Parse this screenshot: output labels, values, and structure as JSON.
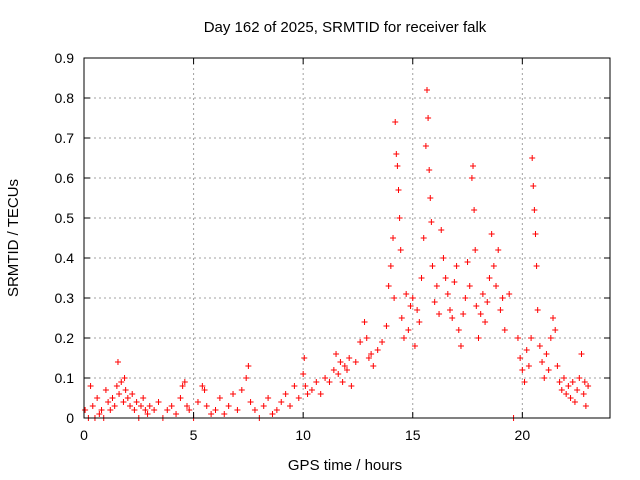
{
  "chart_data": {
    "type": "scatter",
    "title": "Day 162 of 2025, SRMTID for receiver falk",
    "xlabel": "GPS time / hours",
    "ylabel": "SRMTID / TECUs",
    "xlim": [
      0,
      24
    ],
    "ylim": [
      0,
      0.9
    ],
    "x_ticks": [
      0,
      5,
      10,
      15,
      20
    ],
    "y_ticks": [
      0,
      0.1,
      0.2,
      0.3,
      0.4,
      0.5,
      0.6,
      0.7,
      0.8,
      0.9
    ],
    "x_tick_labels": [
      "0",
      "5",
      "10",
      "15",
      "20"
    ],
    "y_tick_labels": [
      "0",
      "0.1",
      "0.2",
      "0.3",
      "0.4",
      "0.5",
      "0.6",
      "0.7",
      "0.8",
      "0.9"
    ],
    "grid": true,
    "marker": "+",
    "color": "#ff0000",
    "series": [
      {
        "name": "SRMTID",
        "points": [
          [
            0.05,
            0.02
          ],
          [
            0.2,
            0.0
          ],
          [
            0.3,
            0.08
          ],
          [
            0.4,
            0.03
          ],
          [
            0.5,
            0.0
          ],
          [
            0.6,
            0.05
          ],
          [
            0.7,
            0.01
          ],
          [
            0.8,
            0.02
          ],
          [
            0.9,
            0.0
          ],
          [
            1.0,
            0.07
          ],
          [
            1.1,
            0.04
          ],
          [
            1.2,
            0.02
          ],
          [
            1.3,
            0.05
          ],
          [
            1.4,
            0.03
          ],
          [
            1.5,
            0.08
          ],
          [
            1.55,
            0.14
          ],
          [
            1.6,
            0.06
          ],
          [
            1.7,
            0.09
          ],
          [
            1.8,
            0.04
          ],
          [
            1.85,
            0.1
          ],
          [
            1.9,
            0.07
          ],
          [
            2.0,
            0.05
          ],
          [
            2.1,
            0.03
          ],
          [
            2.2,
            0.06
          ],
          [
            2.3,
            0.02
          ],
          [
            2.4,
            0.04
          ],
          [
            2.5,
            0.0
          ],
          [
            2.6,
            0.03
          ],
          [
            2.7,
            0.05
          ],
          [
            2.8,
            0.02
          ],
          [
            2.9,
            0.01
          ],
          [
            3.0,
            0.03
          ],
          [
            3.2,
            0.02
          ],
          [
            3.4,
            0.04
          ],
          [
            3.6,
            0.0
          ],
          [
            3.8,
            0.02
          ],
          [
            4.0,
            0.03
          ],
          [
            4.2,
            0.01
          ],
          [
            4.4,
            0.05
          ],
          [
            4.5,
            0.08
          ],
          [
            4.6,
            0.09
          ],
          [
            4.7,
            0.03
          ],
          [
            4.8,
            0.02
          ],
          [
            5.0,
            0.0
          ],
          [
            5.2,
            0.04
          ],
          [
            5.4,
            0.08
          ],
          [
            5.5,
            0.07
          ],
          [
            5.6,
            0.03
          ],
          [
            5.8,
            0.01
          ],
          [
            6.0,
            0.02
          ],
          [
            6.2,
            0.05
          ],
          [
            6.4,
            0.01
          ],
          [
            6.6,
            0.03
          ],
          [
            6.8,
            0.06
          ],
          [
            7.0,
            0.02
          ],
          [
            7.2,
            0.07
          ],
          [
            7.4,
            0.1
          ],
          [
            7.5,
            0.13
          ],
          [
            7.6,
            0.04
          ],
          [
            7.8,
            0.02
          ],
          [
            8.0,
            0.0
          ],
          [
            8.2,
            0.03
          ],
          [
            8.4,
            0.05
          ],
          [
            8.6,
            0.01
          ],
          [
            8.8,
            0.02
          ],
          [
            9.0,
            0.04
          ],
          [
            9.2,
            0.06
          ],
          [
            9.4,
            0.03
          ],
          [
            9.6,
            0.08
          ],
          [
            9.8,
            0.05
          ],
          [
            10.0,
            0.11
          ],
          [
            10.05,
            0.15
          ],
          [
            10.1,
            0.08
          ],
          [
            10.2,
            0.06
          ],
          [
            10.4,
            0.07
          ],
          [
            10.6,
            0.09
          ],
          [
            10.8,
            0.06
          ],
          [
            11.0,
            0.1
          ],
          [
            11.2,
            0.09
          ],
          [
            11.4,
            0.12
          ],
          [
            11.5,
            0.16
          ],
          [
            11.6,
            0.11
          ],
          [
            11.7,
            0.14
          ],
          [
            11.8,
            0.09
          ],
          [
            11.9,
            0.13
          ],
          [
            12.0,
            0.12
          ],
          [
            12.1,
            0.15
          ],
          [
            12.2,
            0.08
          ],
          [
            12.4,
            0.14
          ],
          [
            12.6,
            0.19
          ],
          [
            12.8,
            0.24
          ],
          [
            12.9,
            0.2
          ],
          [
            13.0,
            0.15
          ],
          [
            13.1,
            0.16
          ],
          [
            13.2,
            0.13
          ],
          [
            13.4,
            0.17
          ],
          [
            13.6,
            0.19
          ],
          [
            13.8,
            0.23
          ],
          [
            13.9,
            0.33
          ],
          [
            14.0,
            0.38
          ],
          [
            14.1,
            0.45
          ],
          [
            14.15,
            0.3
          ],
          [
            14.2,
            0.74
          ],
          [
            14.25,
            0.66
          ],
          [
            14.3,
            0.63
          ],
          [
            14.35,
            0.57
          ],
          [
            14.4,
            0.5
          ],
          [
            14.45,
            0.42
          ],
          [
            14.5,
            0.25
          ],
          [
            14.6,
            0.2
          ],
          [
            14.7,
            0.31
          ],
          [
            14.8,
            0.22
          ],
          [
            14.9,
            0.28
          ],
          [
            15.0,
            0.3
          ],
          [
            15.1,
            0.18
          ],
          [
            15.2,
            0.27
          ],
          [
            15.3,
            0.24
          ],
          [
            15.4,
            0.35
          ],
          [
            15.5,
            0.45
          ],
          [
            15.6,
            0.68
          ],
          [
            15.65,
            0.82
          ],
          [
            15.7,
            0.75
          ],
          [
            15.75,
            0.62
          ],
          [
            15.8,
            0.55
          ],
          [
            15.85,
            0.49
          ],
          [
            15.9,
            0.38
          ],
          [
            16.0,
            0.29
          ],
          [
            16.1,
            0.33
          ],
          [
            16.2,
            0.26
          ],
          [
            16.3,
            0.47
          ],
          [
            16.4,
            0.4
          ],
          [
            16.5,
            0.35
          ],
          [
            16.6,
            0.31
          ],
          [
            16.7,
            0.27
          ],
          [
            16.8,
            0.25
          ],
          [
            16.9,
            0.34
          ],
          [
            17.0,
            0.38
          ],
          [
            17.1,
            0.22
          ],
          [
            17.2,
            0.18
          ],
          [
            17.3,
            0.26
          ],
          [
            17.4,
            0.3
          ],
          [
            17.5,
            0.39
          ],
          [
            17.6,
            0.33
          ],
          [
            17.7,
            0.6
          ],
          [
            17.75,
            0.63
          ],
          [
            17.8,
            0.52
          ],
          [
            17.85,
            0.42
          ],
          [
            17.9,
            0.28
          ],
          [
            18.0,
            0.2
          ],
          [
            18.1,
            0.26
          ],
          [
            18.2,
            0.31
          ],
          [
            18.3,
            0.24
          ],
          [
            18.4,
            0.29
          ],
          [
            18.5,
            0.35
          ],
          [
            18.6,
            0.46
          ],
          [
            18.7,
            0.38
          ],
          [
            18.8,
            0.33
          ],
          [
            18.9,
            0.42
          ],
          [
            19.0,
            0.27
          ],
          [
            19.1,
            0.3
          ],
          [
            19.2,
            0.22
          ],
          [
            19.4,
            0.31
          ],
          [
            19.6,
            0.0
          ],
          [
            19.8,
            0.2
          ],
          [
            19.9,
            0.15
          ],
          [
            20.0,
            0.12
          ],
          [
            20.1,
            0.09
          ],
          [
            20.2,
            0.17
          ],
          [
            20.3,
            0.13
          ],
          [
            20.4,
            0.2
          ],
          [
            20.45,
            0.65
          ],
          [
            20.5,
            0.58
          ],
          [
            20.55,
            0.52
          ],
          [
            20.6,
            0.46
          ],
          [
            20.65,
            0.38
          ],
          [
            20.7,
            0.27
          ],
          [
            20.8,
            0.18
          ],
          [
            20.9,
            0.14
          ],
          [
            21.0,
            0.1
          ],
          [
            21.1,
            0.16
          ],
          [
            21.2,
            0.12
          ],
          [
            21.3,
            0.2
          ],
          [
            21.4,
            0.25
          ],
          [
            21.5,
            0.22
          ],
          [
            21.6,
            0.13
          ],
          [
            21.7,
            0.09
          ],
          [
            21.8,
            0.07
          ],
          [
            21.9,
            0.1
          ],
          [
            22.0,
            0.06
          ],
          [
            22.1,
            0.08
          ],
          [
            22.2,
            0.05
          ],
          [
            22.3,
            0.09
          ],
          [
            22.4,
            0.04
          ],
          [
            22.5,
            0.07
          ],
          [
            22.6,
            0.1
          ],
          [
            22.7,
            0.16
          ],
          [
            22.8,
            0.06
          ],
          [
            22.85,
            0.09
          ],
          [
            22.9,
            0.03
          ],
          [
            23.0,
            0.08
          ]
        ]
      }
    ]
  }
}
